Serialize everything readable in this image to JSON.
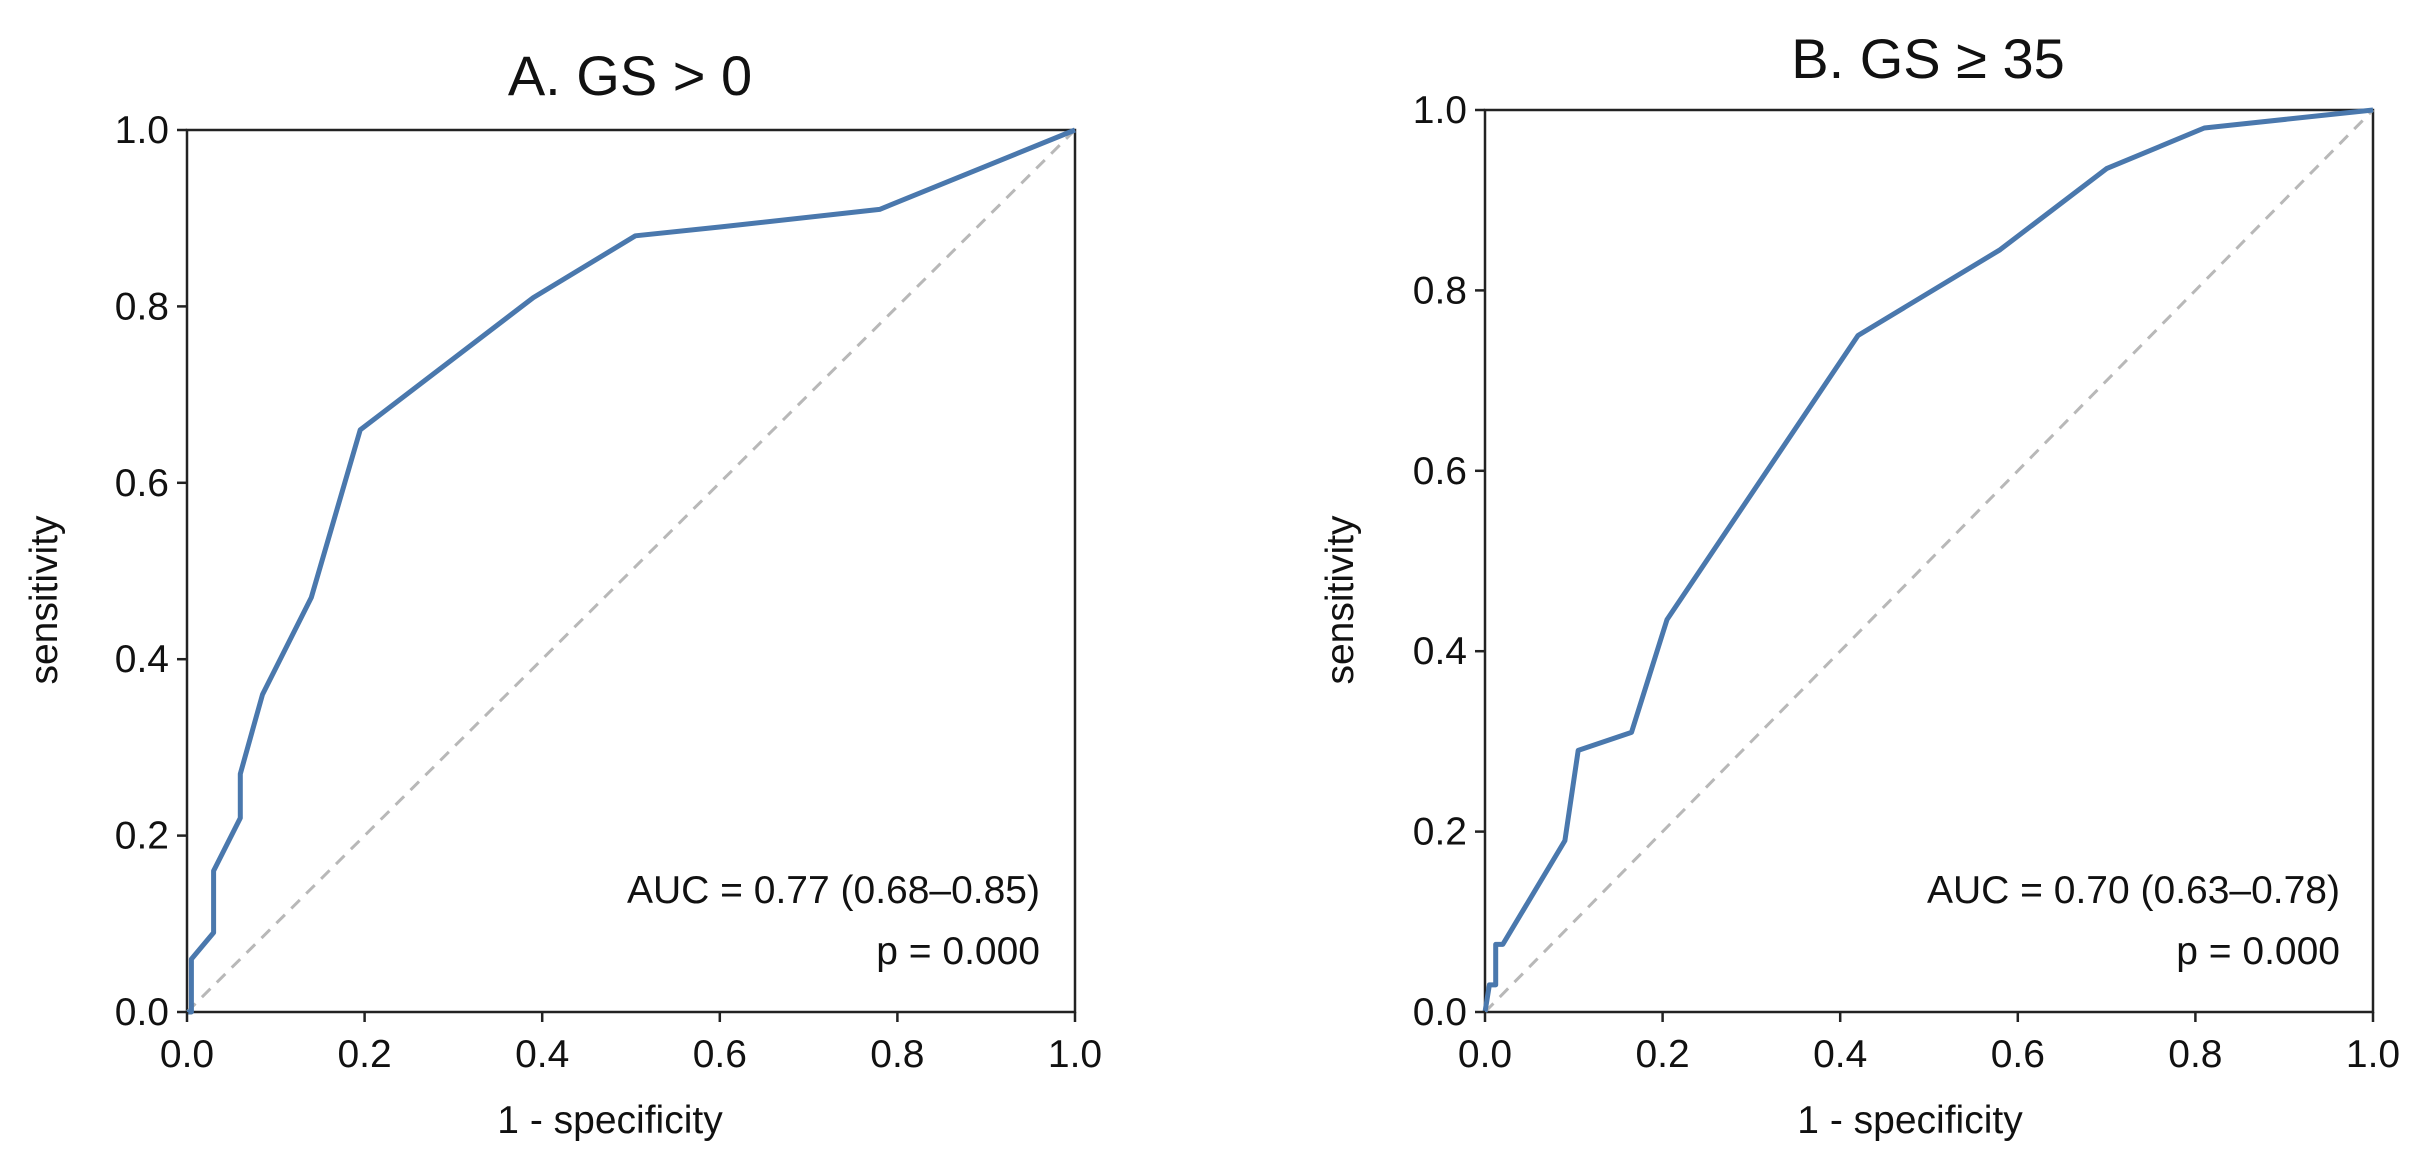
{
  "colors": {
    "roc_line": "#4a78ad",
    "reference_line": "#b8b8b8",
    "axes": "#222222"
  },
  "chart_data": [
    {
      "type": "line",
      "title": "A. GS > 0",
      "xlabel": "1 - specificity",
      "ylabel": "sensitivity",
      "xlim": [
        0,
        1
      ],
      "ylim": [
        0,
        1
      ],
      "x_ticks": [
        "0.0",
        "0.2",
        "0.4",
        "0.6",
        "0.8",
        "1.0"
      ],
      "y_ticks": [
        "0.0",
        "0.2",
        "0.4",
        "0.6",
        "0.8",
        "1.0"
      ],
      "grid": false,
      "series": [
        {
          "name": "ROC",
          "x": [
            0.0,
            0.005,
            0.005,
            0.03,
            0.03,
            0.06,
            0.06,
            0.085,
            0.14,
            0.195,
            0.39,
            0.505,
            0.6,
            0.78,
            1.0
          ],
          "y": [
            0.0,
            0.0,
            0.06,
            0.09,
            0.16,
            0.22,
            0.27,
            0.36,
            0.47,
            0.66,
            0.81,
            0.88,
            0.89,
            0.91,
            1.0
          ]
        },
        {
          "name": "reference",
          "x": [
            0,
            1
          ],
          "y": [
            0,
            1
          ]
        }
      ],
      "annotations": [
        "AUC = 0.77 (0.68–0.85)",
        "p = 0.000"
      ]
    },
    {
      "type": "line",
      "title": "B. GS ≥ 35",
      "xlabel": "1 - specificity",
      "ylabel": "sensitivity",
      "xlim": [
        0,
        1
      ],
      "ylim": [
        0,
        1
      ],
      "x_ticks": [
        "0.0",
        "0.2",
        "0.4",
        "0.6",
        "0.8",
        "1.0"
      ],
      "y_ticks": [
        "0.0",
        "0.2",
        "0.4",
        "0.6",
        "0.8",
        "1.0"
      ],
      "grid": false,
      "series": [
        {
          "name": "ROC",
          "x": [
            0.0,
            0.005,
            0.01,
            0.012,
            0.012,
            0.02,
            0.09,
            0.105,
            0.165,
            0.205,
            0.42,
            0.58,
            0.7,
            0.81,
            1.0
          ],
          "y": [
            0.0,
            0.03,
            0.03,
            0.03,
            0.075,
            0.075,
            0.19,
            0.29,
            0.31,
            0.435,
            0.75,
            0.845,
            0.935,
            0.98,
            1.0
          ]
        },
        {
          "name": "reference",
          "x": [
            0,
            1
          ],
          "y": [
            0,
            1
          ]
        }
      ],
      "annotations": [
        "AUC = 0.70 (0.63–0.78)",
        "p = 0.000"
      ]
    }
  ]
}
